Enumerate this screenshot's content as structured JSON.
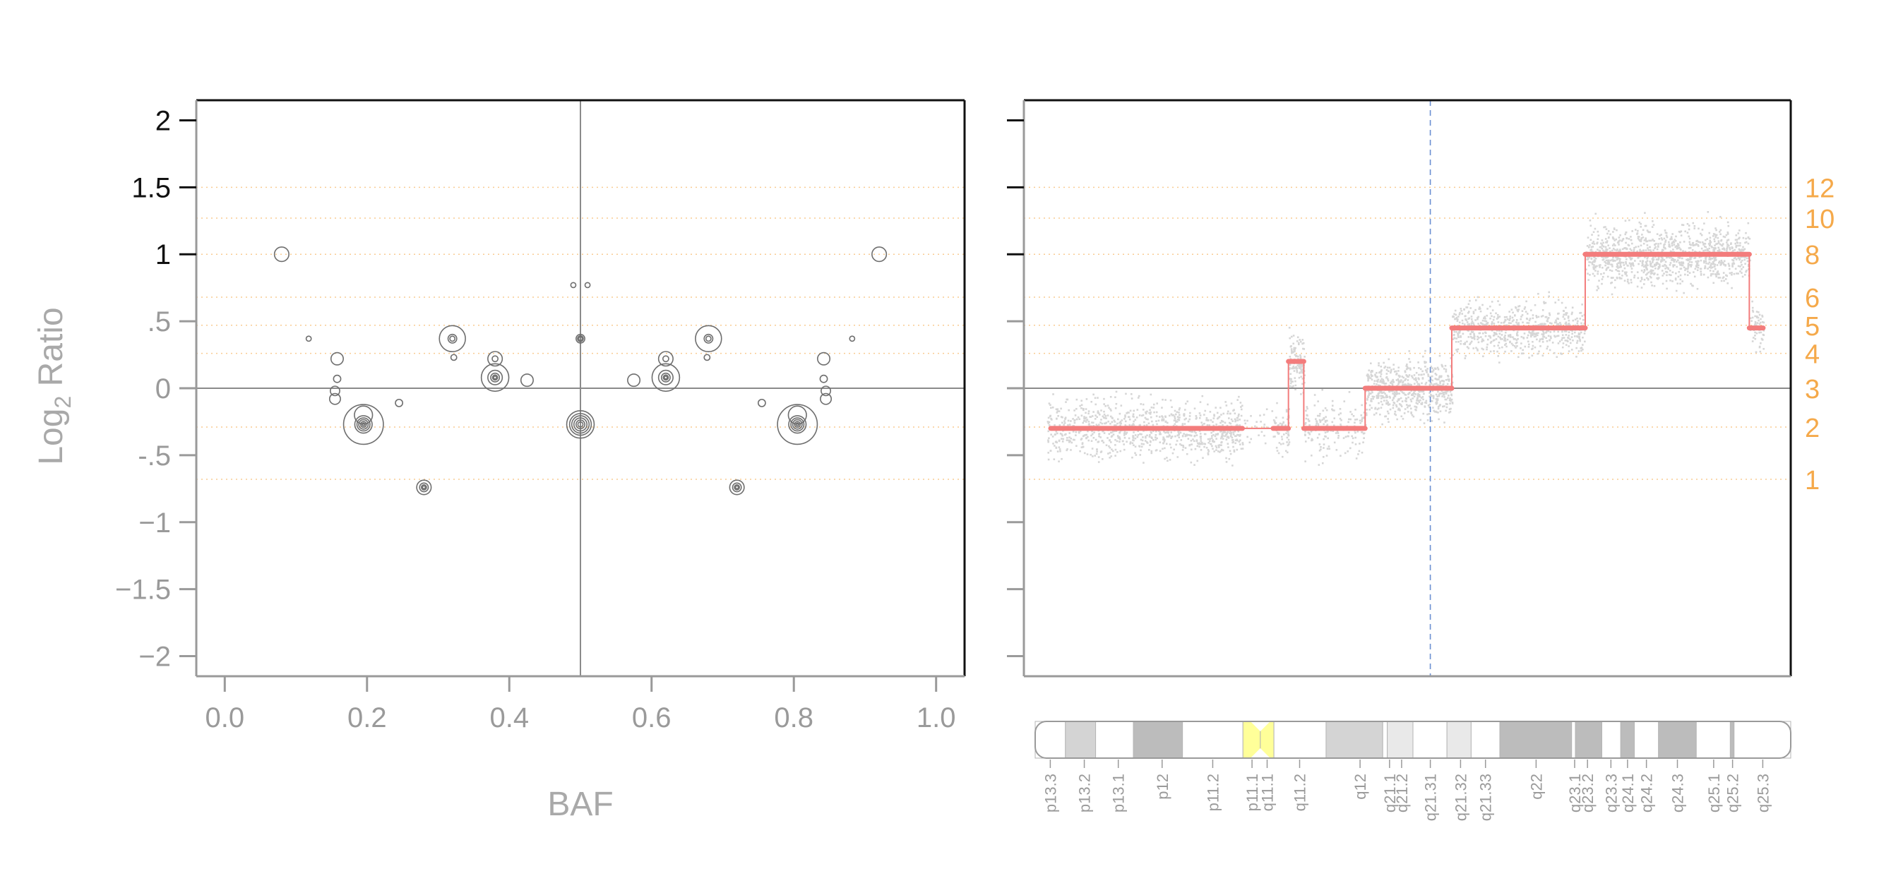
{
  "figure": {
    "colors": {
      "axis_dark": "#111111",
      "axis_grey": "#9a9a9a",
      "orange": "#f5a94a",
      "segment_red": "#f37c7c",
      "points_grey": "#d6d6d6",
      "circle_grey": "#6e6e6e",
      "centromere_yellow": "#ffff99",
      "band_dark": "#bcbcbc",
      "band_mid": "#d4d4d4",
      "band_light": "#e9e9e9",
      "median_blue": "#6b8fd1"
    }
  },
  "chart_data": [
    {
      "type": "scatter",
      "name": "baf-vs-log2",
      "xlabel": "BAF",
      "ylabel": "Log2 Ratio",
      "ylabel_main": "Log",
      "ylabel_sub": "2",
      "ylabel_rest": " Ratio",
      "xlim": [
        -0.04,
        1.04
      ],
      "ylim": [
        -2.15,
        2.15
      ],
      "xticks": [
        0.0,
        0.2,
        0.4,
        0.6,
        0.8,
        1.0
      ],
      "xtick_labels": [
        "0.0",
        "0.2",
        "0.4",
        "0.6",
        "0.8",
        "1.0"
      ],
      "yticks": [
        2,
        1.5,
        1,
        0.5,
        0,
        -0.5,
        -1,
        -1.5,
        -2
      ],
      "ytick_labels": [
        "2",
        "1.5",
        "1",
        ".5",
        "0",
        "-.5",
        "−1",
        "−1.5",
        "−2"
      ],
      "grid": "dotted orange horizontal lines at copy-number levels",
      "reference_lines": {
        "x": 0.5,
        "y": 0
      },
      "circles": [
        {
          "x": 0.08,
          "y": 1.0,
          "r": 0.2
        },
        {
          "x": 0.92,
          "y": 1.0,
          "r": 0.2
        },
        {
          "x": 0.49,
          "y": 0.77,
          "r": 0.07
        },
        {
          "x": 0.51,
          "y": 0.77,
          "r": 0.07
        },
        {
          "x": 0.118,
          "y": 0.37,
          "r": 0.07
        },
        {
          "x": 0.882,
          "y": 0.37,
          "r": 0.07
        },
        {
          "x": 0.32,
          "y": 0.37,
          "r": 0.36
        },
        {
          "x": 0.32,
          "y": 0.37,
          "r": 0.12
        },
        {
          "x": 0.32,
          "y": 0.37,
          "r": 0.07
        },
        {
          "x": 0.68,
          "y": 0.37,
          "r": 0.36
        },
        {
          "x": 0.68,
          "y": 0.37,
          "r": 0.12
        },
        {
          "x": 0.68,
          "y": 0.37,
          "r": 0.07
        },
        {
          "x": 0.5,
          "y": 0.37,
          "r": 0.12
        },
        {
          "x": 0.5,
          "y": 0.37,
          "r": 0.08
        },
        {
          "x": 0.5,
          "y": 0.37,
          "r": 0.05
        },
        {
          "x": 0.322,
          "y": 0.23,
          "r": 0.08
        },
        {
          "x": 0.678,
          "y": 0.23,
          "r": 0.08
        },
        {
          "x": 0.158,
          "y": 0.22,
          "r": 0.17
        },
        {
          "x": 0.842,
          "y": 0.22,
          "r": 0.17
        },
        {
          "x": 0.38,
          "y": 0.22,
          "r": 0.2
        },
        {
          "x": 0.38,
          "y": 0.22,
          "r": 0.08
        },
        {
          "x": 0.62,
          "y": 0.22,
          "r": 0.2
        },
        {
          "x": 0.62,
          "y": 0.22,
          "r": 0.08
        },
        {
          "x": 0.38,
          "y": 0.08,
          "r": 0.38
        },
        {
          "x": 0.38,
          "y": 0.08,
          "r": 0.2
        },
        {
          "x": 0.38,
          "y": 0.08,
          "r": 0.12
        },
        {
          "x": 0.38,
          "y": 0.08,
          "r": 0.07
        },
        {
          "x": 0.38,
          "y": 0.08,
          "r": 0.04
        },
        {
          "x": 0.62,
          "y": 0.08,
          "r": 0.38
        },
        {
          "x": 0.62,
          "y": 0.08,
          "r": 0.2
        },
        {
          "x": 0.62,
          "y": 0.08,
          "r": 0.12
        },
        {
          "x": 0.62,
          "y": 0.08,
          "r": 0.07
        },
        {
          "x": 0.62,
          "y": 0.08,
          "r": 0.04
        },
        {
          "x": 0.425,
          "y": 0.06,
          "r": 0.17
        },
        {
          "x": 0.575,
          "y": 0.06,
          "r": 0.17
        },
        {
          "x": 0.158,
          "y": 0.07,
          "r": 0.1
        },
        {
          "x": 0.842,
          "y": 0.07,
          "r": 0.1
        },
        {
          "x": 0.155,
          "y": -0.02,
          "r": 0.13
        },
        {
          "x": 0.845,
          "y": -0.02,
          "r": 0.13
        },
        {
          "x": 0.155,
          "y": -0.08,
          "r": 0.15
        },
        {
          "x": 0.845,
          "y": -0.08,
          "r": 0.15
        },
        {
          "x": 0.245,
          "y": -0.11,
          "r": 0.1
        },
        {
          "x": 0.755,
          "y": -0.11,
          "r": 0.1
        },
        {
          "x": 0.195,
          "y": -0.2,
          "r": 0.25
        },
        {
          "x": 0.805,
          "y": -0.2,
          "r": 0.25
        },
        {
          "x": 0.195,
          "y": -0.27,
          "r": 0.55
        },
        {
          "x": 0.195,
          "y": -0.27,
          "r": 0.24
        },
        {
          "x": 0.195,
          "y": -0.27,
          "r": 0.18
        },
        {
          "x": 0.195,
          "y": -0.27,
          "r": 0.13
        },
        {
          "x": 0.195,
          "y": -0.27,
          "r": 0.08
        },
        {
          "x": 0.195,
          "y": -0.27,
          "r": 0.04
        },
        {
          "x": 0.805,
          "y": -0.27,
          "r": 0.55
        },
        {
          "x": 0.805,
          "y": -0.27,
          "r": 0.24
        },
        {
          "x": 0.805,
          "y": -0.27,
          "r": 0.18
        },
        {
          "x": 0.805,
          "y": -0.27,
          "r": 0.13
        },
        {
          "x": 0.805,
          "y": -0.27,
          "r": 0.08
        },
        {
          "x": 0.805,
          "y": -0.27,
          "r": 0.04
        },
        {
          "x": 0.5,
          "y": -0.27,
          "r": 0.38
        },
        {
          "x": 0.5,
          "y": -0.27,
          "r": 0.3
        },
        {
          "x": 0.5,
          "y": -0.27,
          "r": 0.24
        },
        {
          "x": 0.5,
          "y": -0.27,
          "r": 0.18
        },
        {
          "x": 0.5,
          "y": -0.27,
          "r": 0.12
        },
        {
          "x": 0.5,
          "y": -0.27,
          "r": 0.07
        },
        {
          "x": 0.28,
          "y": -0.74,
          "r": 0.2
        },
        {
          "x": 0.28,
          "y": -0.74,
          "r": 0.12
        },
        {
          "x": 0.28,
          "y": -0.74,
          "r": 0.07
        },
        {
          "x": 0.28,
          "y": -0.74,
          "r": 0.04
        },
        {
          "x": 0.72,
          "y": -0.74,
          "r": 0.2
        },
        {
          "x": 0.72,
          "y": -0.74,
          "r": 0.12
        },
        {
          "x": 0.72,
          "y": -0.74,
          "r": 0.07
        },
        {
          "x": 0.72,
          "y": -0.74,
          "r": 0.04
        }
      ]
    },
    {
      "type": "scatter",
      "name": "genome-position-log2",
      "ylim": [
        -2.15,
        2.15
      ],
      "xlim": [
        0,
        100
      ],
      "reference_lines": {
        "y": 0,
        "x_dashed": 53
      },
      "copy_number_labels": [
        {
          "label": "12",
          "y": 1.5
        },
        {
          "label": "10",
          "y": 1.27
        },
        {
          "label": "8",
          "y": 1.0
        },
        {
          "label": "6",
          "y": 0.68
        },
        {
          "label": "5",
          "y": 0.47
        },
        {
          "label": "4",
          "y": 0.26
        },
        {
          "label": "3",
          "y": 0.0
        },
        {
          "label": "2",
          "y": -0.29
        },
        {
          "label": "1",
          "y": -0.68
        }
      ],
      "segments": [
        {
          "x0": 3.5,
          "x1": 28.5,
          "y": -0.3,
          "thick": true
        },
        {
          "x0": 28.5,
          "x1": 32.5,
          "y": -0.3,
          "thick": false
        },
        {
          "x0": 32.5,
          "x1": 34.5,
          "y": -0.3,
          "thick": true
        },
        {
          "x0": 34.5,
          "x1": 36.5,
          "y": 0.2,
          "thick": true
        },
        {
          "x0": 36.5,
          "x1": 44.5,
          "y": -0.3,
          "thick": true
        },
        {
          "x0": 44.5,
          "x1": 55.8,
          "y": 0.0,
          "thick": true
        },
        {
          "x0": 55.8,
          "x1": 73.2,
          "y": 0.45,
          "thick": true
        },
        {
          "x0": 73.2,
          "x1": 94.6,
          "y": 1.0,
          "thick": true
        },
        {
          "x0": 94.6,
          "x1": 96.4,
          "y": 0.45,
          "thick": true
        }
      ],
      "point_clusters": [
        {
          "x0": 3.0,
          "x1": 28.5,
          "center": -0.3,
          "spread": 0.42,
          "n": 900
        },
        {
          "x0": 28.5,
          "x1": 32.5,
          "center": -0.3,
          "spread": 0.35,
          "n": 25
        },
        {
          "x0": 32.5,
          "x1": 34.5,
          "center": -0.3,
          "spread": 0.4,
          "n": 60
        },
        {
          "x0": 34.5,
          "x1": 36.5,
          "center": 0.2,
          "spread": 0.45,
          "n": 120
        },
        {
          "x0": 36.5,
          "x1": 44.5,
          "center": -0.3,
          "spread": 0.4,
          "n": 180
        },
        {
          "x0": 44.5,
          "x1": 55.8,
          "center": 0.0,
          "spread": 0.4,
          "n": 650
        },
        {
          "x0": 55.8,
          "x1": 73.2,
          "center": 0.45,
          "spread": 0.38,
          "n": 650
        },
        {
          "x0": 73.2,
          "x1": 94.6,
          "center": 1.0,
          "spread": 0.42,
          "n": 1100
        },
        {
          "x0": 94.6,
          "x1": 96.4,
          "center": 0.45,
          "spread": 0.35,
          "n": 60
        }
      ]
    }
  ],
  "ideogram": {
    "bands": [
      {
        "name": "p13.3",
        "x0": 0.0,
        "x1": 4.0,
        "fill": "white"
      },
      {
        "name": "p13.2",
        "x0": 4.0,
        "x1": 8.0,
        "fill": "mid"
      },
      {
        "name": "p13.1",
        "x0": 8.0,
        "x1": 13.0,
        "fill": "white"
      },
      {
        "name": "p12",
        "x0": 13.0,
        "x1": 19.5,
        "fill": "dark"
      },
      {
        "name": "p11.2",
        "x0": 19.5,
        "x1": 27.5,
        "fill": "white"
      },
      {
        "name": "p11.1",
        "x0": 27.5,
        "x1": 29.8,
        "fill": "centromere"
      },
      {
        "name": "q11.1",
        "x0": 29.8,
        "x1": 31.6,
        "fill": "centromere"
      },
      {
        "name": "q11.2",
        "x0": 31.6,
        "x1": 38.5,
        "fill": "white"
      },
      {
        "name": "q12",
        "x0": 38.5,
        "x1": 46.0,
        "fill": "mid"
      },
      {
        "name": "q21.1",
        "x0": 46.0,
        "x1": 46.6,
        "fill": "white"
      },
      {
        "name": "q21.2",
        "x0": 46.6,
        "x1": 50.0,
        "fill": "light"
      },
      {
        "name": "q21.31",
        "x0": 50.0,
        "x1": 54.5,
        "fill": "white"
      },
      {
        "name": "q21.32",
        "x0": 54.5,
        "x1": 57.7,
        "fill": "light"
      },
      {
        "name": "q21.33",
        "x0": 57.7,
        "x1": 61.5,
        "fill": "white"
      },
      {
        "name": "q22",
        "x0": 61.5,
        "x1": 71.0,
        "fill": "dark"
      },
      {
        "name": "q23.1",
        "x0": 71.0,
        "x1": 71.5,
        "fill": "white"
      },
      {
        "name": "q23.2",
        "x0": 71.5,
        "x1": 75.0,
        "fill": "dark"
      },
      {
        "name": "q23.3",
        "x0": 75.0,
        "x1": 77.5,
        "fill": "white"
      },
      {
        "name": "q24.1",
        "x0": 77.5,
        "x1": 79.3,
        "fill": "dark"
      },
      {
        "name": "q24.2",
        "x0": 79.3,
        "x1": 82.5,
        "fill": "white"
      },
      {
        "name": "q24.3",
        "x0": 82.5,
        "x1": 87.5,
        "fill": "dark"
      },
      {
        "name": "q25.1",
        "x0": 87.5,
        "x1": 92.0,
        "fill": "white"
      },
      {
        "name": "q25.2",
        "x0": 92.0,
        "x1": 92.5,
        "fill": "dark"
      },
      {
        "name": "q25.3",
        "x0": 92.5,
        "x1": 100.0,
        "fill": "white"
      }
    ],
    "labels": [
      {
        "text": "p13.3",
        "pos": 2.0
      },
      {
        "text": "p13.2",
        "pos": 6.5
      },
      {
        "text": "p13.1",
        "pos": 11.0
      },
      {
        "text": "p12",
        "pos": 16.8
      },
      {
        "text": "p11.2",
        "pos": 23.5
      },
      {
        "text": "p11.1",
        "pos": 28.7
      },
      {
        "text": "q11.1",
        "pos": 30.7
      },
      {
        "text": "q11.2",
        "pos": 35.0
      },
      {
        "text": "q12",
        "pos": 43.0
      },
      {
        "text": "q21.1",
        "pos": 46.9
      },
      {
        "text": "q21.2",
        "pos": 48.5
      },
      {
        "text": "q21.31",
        "pos": 52.3
      },
      {
        "text": "q21.32",
        "pos": 56.3
      },
      {
        "text": "q21.33",
        "pos": 59.6
      },
      {
        "text": "q22",
        "pos": 66.3
      },
      {
        "text": "q23.1",
        "pos": 71.4
      },
      {
        "text": "q23.2",
        "pos": 73.1
      },
      {
        "text": "q23.3",
        "pos": 76.2
      },
      {
        "text": "q24.1",
        "pos": 78.4
      },
      {
        "text": "q24.2",
        "pos": 80.9
      },
      {
        "text": "q24.3",
        "pos": 85.0
      },
      {
        "text": "q25.1",
        "pos": 89.8
      },
      {
        "text": "q25.2",
        "pos": 92.3
      },
      {
        "text": "q25.3",
        "pos": 96.3
      }
    ]
  }
}
